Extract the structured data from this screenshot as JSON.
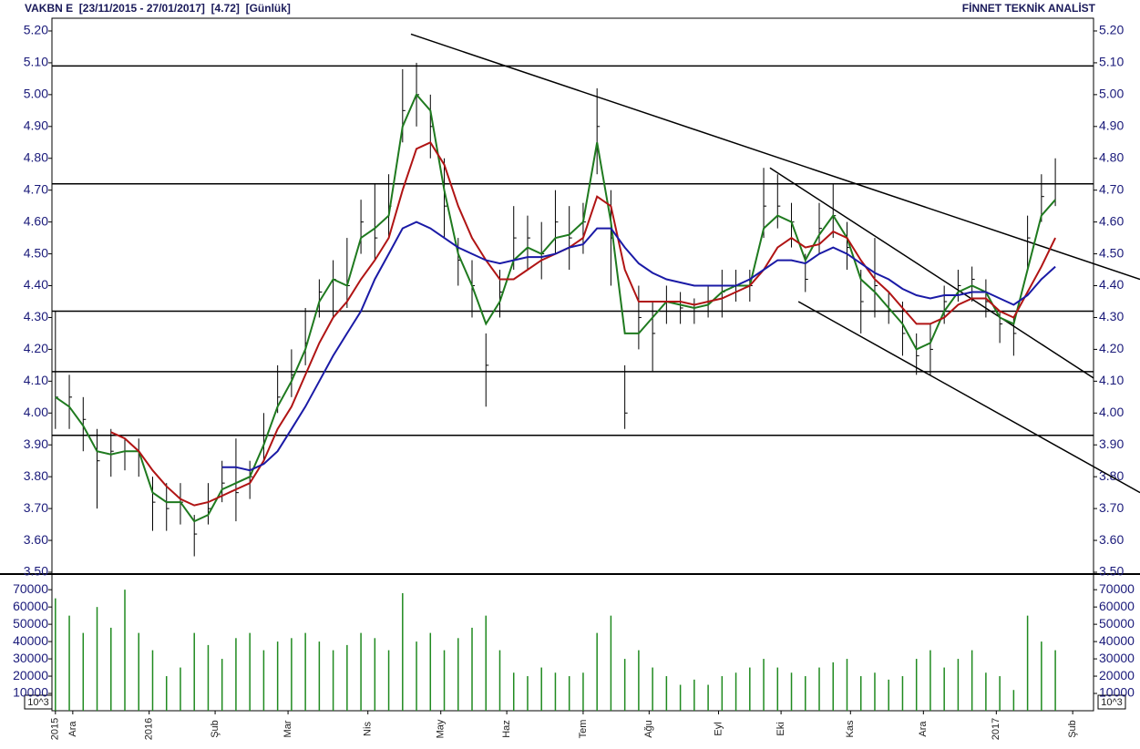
{
  "chart_data": [
    {
      "type": "ohlc",
      "title": "VAKBN E  [23/11/2015 - 27/01/2017]  [4.72]  [Günlük]",
      "source": "FİNNET TEKNİK ANALİST",
      "xlim": [
        0,
        300
      ],
      "ylim": [
        3.5,
        5.24
      ],
      "yticks": [
        {
          "value": 3.5,
          "label": "3.50"
        },
        {
          "value": 3.6,
          "label": "3.60"
        },
        {
          "value": 3.7,
          "label": "3.70"
        },
        {
          "value": 3.8,
          "label": "3.80"
        },
        {
          "value": 3.9,
          "label": "3.90"
        },
        {
          "value": 4.0,
          "label": "4.00"
        },
        {
          "value": 4.1,
          "label": "4.10"
        },
        {
          "value": 4.2,
          "label": "4.20"
        },
        {
          "value": 4.3,
          "label": "4.30"
        },
        {
          "value": 4.4,
          "label": "4.40"
        },
        {
          "value": 4.5,
          "label": "4.50"
        },
        {
          "value": 4.6,
          "label": "4.60"
        },
        {
          "value": 4.7,
          "label": "4.70"
        },
        {
          "value": 4.8,
          "label": "4.80"
        },
        {
          "value": 4.9,
          "label": "4.90"
        },
        {
          "value": 5.0,
          "label": "5.00"
        },
        {
          "value": 5.1,
          "label": "5.10"
        },
        {
          "value": 5.2,
          "label": "5.20"
        }
      ],
      "x": [
        1,
        5,
        9,
        13,
        17,
        21,
        25,
        29,
        33,
        37,
        41,
        45,
        49,
        53,
        57,
        61,
        65,
        69,
        73,
        77,
        81,
        85,
        89,
        93,
        97,
        101,
        105,
        109,
        113,
        117,
        121,
        125,
        129,
        133,
        137,
        141,
        145,
        149,
        153,
        157,
        161,
        165,
        169,
        173,
        177,
        181,
        185,
        189,
        193,
        197,
        201,
        205,
        209,
        213,
        217,
        221,
        225,
        229,
        233,
        237,
        241,
        245,
        249,
        253,
        257,
        261,
        265,
        269,
        273,
        277,
        281,
        285,
        289
      ],
      "high": [
        4.32,
        4.12,
        4.05,
        3.95,
        3.95,
        3.92,
        3.92,
        3.8,
        3.78,
        3.78,
        3.68,
        3.78,
        3.85,
        3.92,
        3.85,
        4.0,
        4.15,
        4.2,
        4.33,
        4.42,
        4.48,
        4.55,
        4.67,
        4.72,
        4.75,
        5.08,
        5.1,
        5.0,
        4.8,
        4.55,
        4.48,
        4.25,
        4.45,
        4.65,
        4.62,
        4.6,
        4.7,
        4.65,
        4.66,
        5.02,
        4.7,
        4.15,
        4.4,
        4.35,
        4.4,
        4.38,
        4.36,
        4.4,
        4.45,
        4.45,
        4.45,
        4.77,
        4.75,
        4.66,
        4.5,
        4.66,
        4.72,
        4.6,
        4.45,
        4.55,
        4.38,
        4.35,
        4.25,
        4.28,
        4.4,
        4.45,
        4.46,
        4.42,
        4.32,
        4.3,
        4.62,
        4.75,
        4.8
      ],
      "low": [
        3.95,
        3.95,
        3.88,
        3.7,
        3.8,
        3.82,
        3.8,
        3.63,
        3.63,
        3.65,
        3.55,
        3.65,
        3.72,
        3.66,
        3.73,
        3.85,
        4.0,
        4.05,
        4.15,
        4.3,
        4.3,
        4.33,
        4.5,
        4.48,
        4.55,
        4.85,
        4.9,
        4.8,
        4.55,
        4.4,
        4.3,
        4.02,
        4.3,
        4.45,
        4.45,
        4.42,
        4.5,
        4.45,
        4.5,
        4.75,
        4.4,
        3.95,
        4.2,
        4.13,
        4.28,
        4.28,
        4.28,
        4.3,
        4.3,
        4.35,
        4.35,
        4.55,
        4.58,
        4.52,
        4.38,
        4.5,
        4.55,
        4.45,
        4.25,
        4.3,
        4.28,
        4.18,
        4.12,
        4.12,
        4.28,
        4.35,
        4.35,
        4.3,
        4.22,
        4.18,
        4.45,
        4.6,
        4.65
      ],
      "close": [
        4.05,
        4.05,
        3.98,
        3.85,
        3.88,
        3.88,
        3.87,
        3.72,
        3.7,
        3.72,
        3.62,
        3.7,
        3.78,
        3.75,
        3.8,
        3.93,
        4.05,
        4.12,
        4.22,
        4.38,
        4.42,
        4.4,
        4.6,
        4.55,
        4.65,
        4.95,
        5.0,
        4.9,
        4.65,
        4.48,
        4.4,
        4.15,
        4.38,
        4.55,
        4.55,
        4.5,
        4.6,
        4.55,
        4.6,
        4.9,
        4.55,
        4.0,
        4.3,
        4.25,
        4.35,
        4.33,
        4.32,
        4.35,
        4.38,
        4.4,
        4.4,
        4.65,
        4.65,
        4.6,
        4.42,
        4.58,
        4.62,
        4.52,
        4.35,
        4.4,
        4.32,
        4.25,
        4.18,
        4.2,
        4.35,
        4.4,
        4.42,
        4.35,
        4.28,
        4.25,
        4.55,
        4.68,
        4.72
      ],
      "bar_color": "#000000",
      "series": [
        {
          "color": "#1f7a1f",
          "values": [
            4.05,
            4.02,
            3.96,
            3.88,
            3.87,
            3.88,
            3.88,
            3.75,
            3.72,
            3.72,
            3.66,
            3.68,
            3.76,
            3.78,
            3.8,
            3.9,
            4.02,
            4.1,
            4.2,
            4.35,
            4.42,
            4.4,
            4.55,
            4.58,
            4.62,
            4.9,
            5.0,
            4.95,
            4.7,
            4.5,
            4.4,
            4.28,
            4.35,
            4.48,
            4.52,
            4.5,
            4.55,
            4.56,
            4.6,
            4.85,
            4.6,
            4.25,
            4.25,
            4.3,
            4.35,
            4.34,
            4.33,
            4.34,
            4.38,
            4.4,
            4.4,
            4.58,
            4.62,
            4.6,
            4.48,
            4.56,
            4.62,
            4.55,
            4.42,
            4.38,
            4.33,
            4.28,
            4.2,
            4.22,
            4.32,
            4.38,
            4.4,
            4.38,
            4.3,
            4.28,
            4.45,
            4.62,
            4.67
          ]
        },
        {
          "color": "#b01414",
          "values": [
            null,
            null,
            null,
            null,
            3.94,
            3.92,
            3.88,
            3.82,
            3.77,
            3.73,
            3.71,
            3.72,
            3.74,
            3.76,
            3.78,
            3.85,
            3.95,
            4.02,
            4.12,
            4.22,
            4.3,
            4.35,
            4.42,
            4.48,
            4.55,
            4.7,
            4.83,
            4.85,
            4.78,
            4.65,
            4.55,
            4.48,
            4.42,
            4.42,
            4.45,
            4.48,
            4.5,
            4.52,
            4.55,
            4.68,
            4.65,
            4.45,
            4.35,
            4.35,
            4.35,
            4.35,
            4.34,
            4.35,
            4.36,
            4.38,
            4.4,
            4.45,
            4.52,
            4.55,
            4.52,
            4.53,
            4.57,
            4.55,
            4.48,
            4.42,
            4.38,
            4.33,
            4.28,
            4.28,
            4.3,
            4.34,
            4.36,
            4.36,
            4.32,
            4.3,
            4.38,
            4.46,
            4.55
          ]
        },
        {
          "color": "#1a1aa6",
          "values": [
            null,
            null,
            null,
            null,
            null,
            null,
            null,
            null,
            null,
            null,
            null,
            null,
            3.83,
            3.83,
            3.82,
            3.84,
            3.88,
            3.95,
            4.02,
            4.1,
            4.18,
            4.25,
            4.32,
            4.42,
            4.5,
            4.58,
            4.6,
            4.58,
            4.55,
            4.52,
            4.5,
            4.48,
            4.47,
            4.48,
            4.49,
            4.49,
            4.5,
            4.52,
            4.53,
            4.58,
            4.58,
            4.52,
            4.47,
            4.44,
            4.42,
            4.41,
            4.4,
            4.4,
            4.4,
            4.4,
            4.42,
            4.45,
            4.48,
            4.48,
            4.47,
            4.5,
            4.52,
            4.5,
            4.47,
            4.44,
            4.42,
            4.39,
            4.37,
            4.36,
            4.37,
            4.37,
            4.38,
            4.38,
            4.36,
            4.34,
            4.37,
            4.42,
            4.46
          ]
        }
      ],
      "hlines": [
        5.09,
        4.72,
        4.32,
        4.13,
        3.93
      ],
      "trendlines": [
        {
          "x": [
            103.4,
            313.4
          ],
          "y": [
            5.19,
            4.42
          ]
        },
        {
          "x": [
            206.8,
            300
          ],
          "y": [
            4.77,
            4.11
          ]
        },
        {
          "x": [
            215,
            313.4
          ],
          "y": [
            4.35,
            3.75
          ]
        }
      ]
    },
    {
      "type": "bar",
      "unit_label": "10^3",
      "color": "#1f8a1f",
      "xlim": [
        0,
        300
      ],
      "ylim": [
        0,
        78000
      ],
      "yticks": [
        10000,
        20000,
        30000,
        40000,
        50000,
        60000,
        70000
      ],
      "xticks": [
        {
          "value": 1,
          "label": "2015"
        },
        {
          "value": 6,
          "label": "Ara"
        },
        {
          "value": 28,
          "label": "2016"
        },
        {
          "value": 47,
          "label": "Şub"
        },
        {
          "value": 68,
          "label": "Mar"
        },
        {
          "value": 91,
          "label": "Nis"
        },
        {
          "value": 112,
          "label": "May"
        },
        {
          "value": 131,
          "label": "Haz"
        },
        {
          "value": 153,
          "label": "Tem"
        },
        {
          "value": 172,
          "label": "Ağu"
        },
        {
          "value": 192,
          "label": "Eyl"
        },
        {
          "value": 210,
          "label": "Eki"
        },
        {
          "value": 230,
          "label": "Kas"
        },
        {
          "value": 251,
          "label": "Ara"
        },
        {
          "value": 272,
          "label": "2017"
        },
        {
          "value": 294,
          "label": "Şub"
        }
      ],
      "x": [
        1,
        5,
        9,
        13,
        17,
        21,
        25,
        29,
        33,
        37,
        41,
        45,
        49,
        53,
        57,
        61,
        65,
        69,
        73,
        77,
        81,
        85,
        89,
        93,
        97,
        101,
        105,
        109,
        113,
        117,
        121,
        125,
        129,
        133,
        137,
        141,
        145,
        149,
        153,
        157,
        161,
        165,
        169,
        173,
        177,
        181,
        185,
        189,
        193,
        197,
        201,
        205,
        209,
        213,
        217,
        221,
        225,
        229,
        233,
        237,
        241,
        245,
        249,
        253,
        257,
        261,
        265,
        269,
        273,
        277,
        281,
        285,
        289
      ],
      "values": [
        65000,
        55000,
        45000,
        60000,
        48000,
        70000,
        45000,
        35000,
        20000,
        25000,
        45000,
        38000,
        30000,
        42000,
        45000,
        35000,
        40000,
        42000,
        45000,
        40000,
        35000,
        38000,
        45000,
        42000,
        35000,
        68000,
        40000,
        45000,
        35000,
        42000,
        48000,
        55000,
        35000,
        22000,
        20000,
        25000,
        22000,
        20000,
        22000,
        45000,
        55000,
        30000,
        35000,
        25000,
        20000,
        15000,
        18000,
        15000,
        20000,
        22000,
        25000,
        30000,
        25000,
        22000,
        20000,
        25000,
        28000,
        30000,
        20000,
        22000,
        18000,
        20000,
        30000,
        35000,
        25000,
        30000,
        35000,
        22000,
        20000,
        12000,
        55000,
        40000,
        35000
      ]
    }
  ]
}
